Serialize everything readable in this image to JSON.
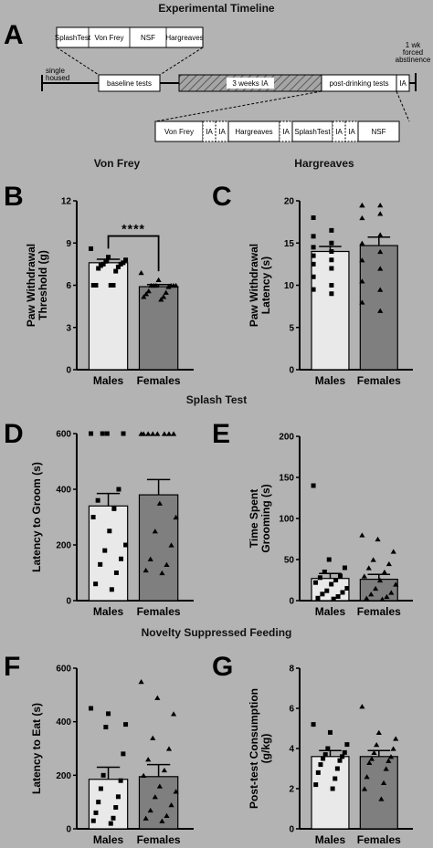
{
  "figure": {
    "section_titles": {
      "timeline": "Experimental Timeline",
      "von_frey": "Von Frey",
      "hargreaves": "Hargreaves",
      "splash": "Splash Test",
      "nsf": "Novelty Suppressed Feeding"
    },
    "panel_letters": [
      "A",
      "B",
      "C",
      "D",
      "E",
      "F",
      "G"
    ],
    "timeline": {
      "top_boxes": [
        "SplashTest",
        "Von Frey",
        "NSF",
        "Hargreaves"
      ],
      "left_label": [
        "single",
        "housed"
      ],
      "baseline": "baseline tests",
      "ia": "3 weeks IA",
      "post": "post-drinking tests",
      "ia_short": "IA",
      "right_label": [
        "1 wk",
        "forced",
        "abstinence"
      ],
      "bottom_boxes": [
        "Von Frey",
        "IA",
        "IA",
        "Hargreaves",
        "IA",
        "SplashTest",
        "IA",
        "IA",
        "NSF"
      ]
    },
    "significance": "****"
  },
  "chart_data": [
    {
      "id": "B",
      "type": "bar",
      "title": "Von Frey",
      "ylabel": "Paw Withdrawal Threshold (g)",
      "ylim": [
        0,
        12
      ],
      "yticks": [
        "0",
        "3",
        "6",
        "9",
        "12"
      ],
      "categories": [
        "Males",
        "Females"
      ],
      "values": [
        7.6,
        5.9
      ],
      "sem": [
        0.25,
        0.15
      ],
      "points": [
        [
          8.6,
          8.0,
          7.8,
          7.7,
          7.6,
          7.5,
          7.5,
          7.4,
          7.3,
          7.2,
          7.0,
          6.0,
          6.0,
          6.0,
          6.0
        ],
        [
          6.9,
          6.4,
          6.0,
          6.0,
          6.0,
          6.0,
          6.0,
          6.0,
          5.9,
          5.6,
          5.5,
          5.4,
          5.2,
          5.2,
          5.0
        ]
      ],
      "markers": [
        "square",
        "triangle"
      ],
      "colors": [
        "#e9e9e9",
        "#7f7f7f"
      ],
      "significance": "****"
    },
    {
      "id": "C",
      "type": "bar",
      "title": "Hargreaves",
      "ylabel": "Paw Withdrawal Latency (s)",
      "ylim": [
        0,
        20
      ],
      "yticks": [
        "0",
        "5",
        "10",
        "15",
        "20"
      ],
      "categories": [
        "Males",
        "Females"
      ],
      "values": [
        14.0,
        14.7
      ],
      "sem": [
        0.6,
        1.0
      ],
      "points": [
        [
          18.0,
          16.5,
          15.8,
          15.0,
          14.5,
          14.0,
          13.5,
          13.0,
          12.5,
          12.0,
          11.0,
          10.0,
          9.5,
          9.0
        ],
        [
          19.5,
          19.5,
          19.5,
          18.5,
          18.0,
          16.0,
          15.0,
          14.0,
          13.0,
          12.0,
          10.5,
          9.5,
          8.0,
          7.0
        ]
      ],
      "markers": [
        "square",
        "triangle"
      ],
      "colors": [
        "#e9e9e9",
        "#7f7f7f"
      ]
    },
    {
      "id": "D",
      "type": "bar",
      "title": "Splash Test",
      "ylabel": "Latency to Groom (s)",
      "ylim": [
        0,
        600
      ],
      "yticks": [
        "0",
        "200",
        "400",
        "600"
      ],
      "categories": [
        "Males",
        "Females"
      ],
      "values": [
        340,
        380
      ],
      "sem": [
        45,
        55
      ],
      "points": [
        [
          600,
          600,
          600,
          600,
          400,
          360,
          330,
          300,
          250,
          200,
          180,
          150,
          130,
          100,
          60,
          40
        ],
        [
          600,
          600,
          600,
          600,
          600,
          600,
          600,
          600,
          350,
          300,
          250,
          200,
          150,
          130,
          110,
          100
        ]
      ],
      "markers": [
        "square",
        "triangle"
      ],
      "colors": [
        "#e9e9e9",
        "#7f7f7f"
      ]
    },
    {
      "id": "E",
      "type": "bar",
      "title": "",
      "ylabel": "Time Spent Grooming (s)",
      "ylim": [
        0,
        200
      ],
      "yticks": [
        "0",
        "50",
        "100",
        "150",
        "200"
      ],
      "categories": [
        "Males",
        "Females"
      ],
      "values": [
        27,
        26
      ],
      "sem": [
        6,
        6
      ],
      "points": [
        [
          140,
          50,
          40,
          35,
          30,
          28,
          25,
          22,
          20,
          15,
          12,
          10,
          8,
          5,
          3,
          2
        ],
        [
          80,
          75,
          60,
          50,
          45,
          40,
          35,
          30,
          25,
          20,
          15,
          10,
          8,
          5,
          3,
          2
        ]
      ],
      "markers": [
        "square",
        "triangle"
      ],
      "colors": [
        "#e9e9e9",
        "#7f7f7f"
      ]
    },
    {
      "id": "F",
      "type": "bar",
      "title": "Novelty Suppressed Feeding",
      "ylabel": "Latency to Eat (s)",
      "ylim": [
        0,
        600
      ],
      "yticks": [
        "0",
        "200",
        "400",
        "600"
      ],
      "categories": [
        "Males",
        "Females"
      ],
      "values": [
        185,
        195
      ],
      "sem": [
        45,
        45
      ],
      "points": [
        [
          450,
          430,
          390,
          380,
          280,
          200,
          180,
          150,
          120,
          100,
          80,
          60,
          40,
          30,
          20
        ],
        [
          550,
          490,
          430,
          340,
          300,
          260,
          220,
          200,
          160,
          140,
          120,
          90,
          70,
          50,
          40,
          30
        ]
      ],
      "markers": [
        "square",
        "triangle"
      ],
      "colors": [
        "#e9e9e9",
        "#7f7f7f"
      ]
    },
    {
      "id": "G",
      "type": "bar",
      "title": "",
      "ylabel": "Post-test Consumption (g/kg)",
      "ylim": [
        0,
        8
      ],
      "yticks": [
        "0",
        "2",
        "4",
        "6",
        "8"
      ],
      "categories": [
        "Males",
        "Females"
      ],
      "values": [
        3.6,
        3.6
      ],
      "sem": [
        0.3,
        0.3
      ],
      "points": [
        [
          5.2,
          4.8,
          4.2,
          4.0,
          3.8,
          3.7,
          3.6,
          3.5,
          3.4,
          3.2,
          3.0,
          2.8,
          2.5,
          2.2,
          2.0
        ],
        [
          6.1,
          4.8,
          4.5,
          4.2,
          4.0,
          3.8,
          3.6,
          3.5,
          3.4,
          3.3,
          3.0,
          2.6,
          2.3,
          2.0,
          1.5
        ]
      ],
      "markers": [
        "square",
        "triangle"
      ],
      "colors": [
        "#e9e9e9",
        "#7f7f7f"
      ]
    }
  ]
}
